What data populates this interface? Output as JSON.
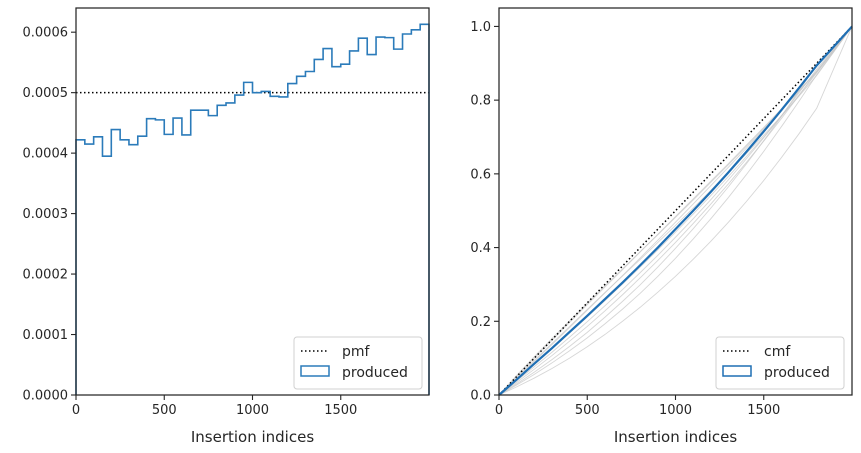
{
  "chart_data": [
    {
      "type": "step",
      "xlabel": "Insertion indices",
      "ylabel": "",
      "xlim": [
        0,
        2000
      ],
      "ylim": [
        0,
        0.00064
      ],
      "xticks": [
        0,
        500,
        1000,
        1500
      ],
      "yticks": [
        "0.0000",
        "0.0001",
        "0.0002",
        "0.0003",
        "0.0004",
        "0.0005",
        "0.0006"
      ],
      "grid": false,
      "legend_position": "lower-right",
      "reference_line": {
        "name": "pmf",
        "y": 0.0005,
        "style": "dotted",
        "color": "#000000"
      },
      "series": [
        {
          "name": "produced",
          "color": "#2b7bba",
          "bin_edges": [
            0,
            50,
            100,
            150,
            200,
            250,
            300,
            350,
            400,
            450,
            500,
            550,
            600,
            650,
            700,
            750,
            800,
            850,
            900,
            950,
            1000,
            1050,
            1100,
            1150,
            1200,
            1250,
            1300,
            1350,
            1400,
            1450,
            1500,
            1550,
            1600,
            1650,
            1700,
            1750,
            1800,
            1850,
            1900,
            1950,
            2000
          ],
          "values": [
            0.000422,
            0.000415,
            0.000427,
            0.000395,
            0.000439,
            0.000422,
            0.000414,
            0.000428,
            0.000457,
            0.000455,
            0.000431,
            0.000458,
            0.00043,
            0.000471,
            0.000471,
            0.000462,
            0.000479,
            0.000483,
            0.000496,
            0.000517,
            0.0005,
            0.000502,
            0.000494,
            0.000493,
            0.000515,
            0.000527,
            0.000535,
            0.000555,
            0.000573,
            0.000543,
            0.000547,
            0.000569,
            0.00059,
            0.000563,
            0.000592,
            0.000591,
            0.000572,
            0.000597,
            0.000604,
            0.000613
          ]
        }
      ]
    },
    {
      "type": "line",
      "xlabel": "Insertion indices",
      "ylabel": "",
      "xlim": [
        0,
        2000
      ],
      "ylim": [
        0,
        1.05
      ],
      "xticks": [
        0,
        500,
        1000,
        1500
      ],
      "yticks": [
        "0.0",
        "0.2",
        "0.4",
        "0.6",
        "0.8",
        "1.0"
      ],
      "grid": false,
      "legend_position": "lower-right",
      "reference_line": {
        "name": "cmf",
        "style": "dotted",
        "color": "#000000",
        "x": [
          0,
          2000
        ],
        "y": [
          0,
          1
        ]
      },
      "series": [
        {
          "name": "produced",
          "color": "#1f6fb4",
          "x": [
            0,
            100,
            200,
            300,
            400,
            500,
            600,
            700,
            800,
            900,
            1000,
            1100,
            1200,
            1300,
            1400,
            1500,
            1600,
            1700,
            1800,
            1900,
            2000
          ],
          "y": [
            0,
            0.042,
            0.085,
            0.127,
            0.171,
            0.215,
            0.26,
            0.305,
            0.352,
            0.4,
            0.45,
            0.5,
            0.551,
            0.604,
            0.659,
            0.715,
            0.773,
            0.833,
            0.894,
            0.947,
            1.0
          ]
        }
      ],
      "background_curves": {
        "color": "#c8c8c8",
        "x": [
          0,
          100,
          200,
          300,
          400,
          500,
          600,
          700,
          800,
          900,
          1000,
          1100,
          1200,
          1300,
          1400,
          1500,
          1600,
          1700,
          1800,
          1900,
          2000
        ],
        "curves": [
          [
            0,
            0.05,
            0.1,
            0.148,
            0.197,
            0.245,
            0.293,
            0.34,
            0.388,
            0.436,
            0.484,
            0.532,
            0.58,
            0.628,
            0.677,
            0.726,
            0.776,
            0.826,
            0.877,
            0.938,
            1.0
          ],
          [
            0,
            0.045,
            0.091,
            0.137,
            0.183,
            0.23,
            0.277,
            0.324,
            0.372,
            0.42,
            0.469,
            0.518,
            0.568,
            0.618,
            0.669,
            0.72,
            0.772,
            0.825,
            0.879,
            0.939,
            1.0
          ],
          [
            0,
            0.038,
            0.077,
            0.116,
            0.157,
            0.199,
            0.242,
            0.286,
            0.332,
            0.379,
            0.428,
            0.478,
            0.53,
            0.584,
            0.64,
            0.698,
            0.758,
            0.82,
            0.884,
            0.942,
            1.0
          ],
          [
            0,
            0.034,
            0.07,
            0.107,
            0.146,
            0.186,
            0.228,
            0.272,
            0.318,
            0.365,
            0.414,
            0.465,
            0.518,
            0.573,
            0.63,
            0.689,
            0.75,
            0.813,
            0.878,
            0.938,
            1.0
          ],
          [
            0,
            0.022,
            0.046,
            0.072,
            0.1,
            0.131,
            0.164,
            0.2,
            0.238,
            0.279,
            0.322,
            0.368,
            0.417,
            0.469,
            0.524,
            0.582,
            0.644,
            0.709,
            0.778,
            0.889,
            1.0
          ],
          [
            0,
            0.03,
            0.062,
            0.096,
            0.132,
            0.17,
            0.211,
            0.254,
            0.299,
            0.347,
            0.398,
            0.451,
            0.507,
            0.565,
            0.626,
            0.69,
            0.756,
            0.825,
            0.896,
            0.949,
            1.0
          ],
          [
            0,
            0.047,
            0.094,
            0.14,
            0.186,
            0.232,
            0.278,
            0.323,
            0.368,
            0.414,
            0.46,
            0.507,
            0.555,
            0.604,
            0.654,
            0.705,
            0.757,
            0.811,
            0.867,
            0.933,
            1.0
          ],
          [
            0,
            0.041,
            0.083,
            0.125,
            0.168,
            0.212,
            0.256,
            0.301,
            0.347,
            0.394,
            0.442,
            0.491,
            0.541,
            0.593,
            0.646,
            0.7,
            0.756,
            0.814,
            0.874,
            0.936,
            1.0
          ],
          [
            0,
            0.027,
            0.056,
            0.087,
            0.12,
            0.155,
            0.193,
            0.233,
            0.276,
            0.322,
            0.371,
            0.423,
            0.478,
            0.536,
            0.597,
            0.661,
            0.728,
            0.797,
            0.869,
            0.934,
            1.0
          ],
          [
            0,
            0.053,
            0.104,
            0.153,
            0.201,
            0.249,
            0.296,
            0.342,
            0.389,
            0.435,
            0.482,
            0.529,
            0.577,
            0.625,
            0.674,
            0.723,
            0.773,
            0.824,
            0.876,
            0.937,
            1.0
          ]
        ]
      }
    }
  ]
}
